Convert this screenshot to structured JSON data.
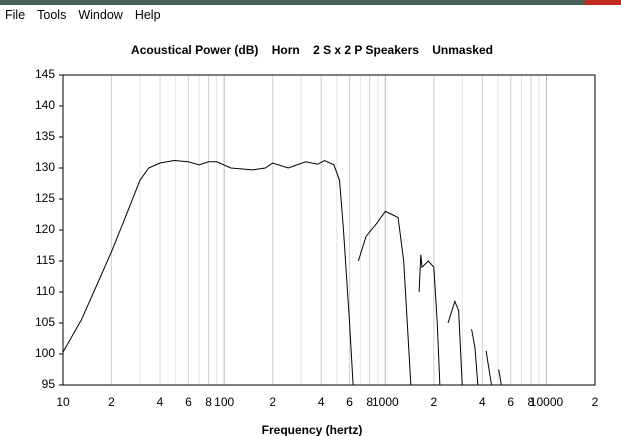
{
  "menu": [
    "File",
    "Tools",
    "Window",
    "Help"
  ],
  "chart_data": {
    "type": "line",
    "title": "Acoustical Power (dB)    Horn    2 S x 2 P Speakers    Unmasked",
    "x_label": "Frequency (hertz)",
    "x_scale": "log",
    "grid": "x",
    "color": "#000000",
    "xlim": [
      10,
      20000
    ],
    "ylim": [
      95,
      145
    ],
    "xticks": [
      10,
      {
        "value": 20,
        "label": "2"
      },
      {
        "value": 40,
        "label": "4"
      },
      {
        "value": 60,
        "label": "6"
      },
      {
        "value": 80,
        "label": "8"
      },
      100,
      {
        "value": 200,
        "label": "2"
      },
      {
        "value": 400,
        "label": "4"
      },
      {
        "value": 600,
        "label": "6"
      },
      {
        "value": 800,
        "label": "8"
      },
      1000,
      {
        "value": 2000,
        "label": "2"
      },
      {
        "value": 4000,
        "label": "4"
      },
      {
        "value": 6000,
        "label": "6"
      },
      {
        "value": 8000,
        "label": "8"
      },
      10000,
      {
        "value": 20000,
        "label": "2"
      }
    ],
    "yticks": [
      95,
      100,
      105,
      110,
      115,
      120,
      125,
      130,
      135,
      140,
      145
    ],
    "x": [
      10,
      13,
      15.7,
      20,
      24,
      30,
      34,
      40,
      49,
      60,
      70,
      80,
      90,
      110,
      150,
      180,
      200,
      250,
      320,
      380,
      420,
      480,
      520,
      550,
      600,
      631,
      650,
      680,
      760,
      880,
      1000,
      1100,
      1200,
      1300,
      1440,
      1550,
      1620,
      1660,
      1690,
      1850,
      2000,
      2100,
      2180,
      2350,
      2450,
      2700,
      2850,
      3000,
      3160,
      3430,
      3600,
      3750,
      3960,
      4220,
      4560,
      4780,
      5050,
      5250
    ],
    "values": [
      100.3,
      105.5,
      110.3,
      116.5,
      121.6,
      128,
      130,
      130.8,
      131.2,
      131,
      130.5,
      131,
      131,
      130,
      129.7,
      130,
      130.8,
      130,
      131,
      130.6,
      131.2,
      130.5,
      128,
      120,
      105,
      95,
      null,
      115,
      119,
      121,
      123,
      122.5,
      122,
      115,
      95,
      null,
      110,
      116,
      114,
      115,
      114,
      105,
      95,
      null,
      105,
      108.5,
      107,
      95,
      null,
      104,
      101,
      95,
      null,
      100.5,
      95,
      null,
      97.5,
      95
    ]
  }
}
